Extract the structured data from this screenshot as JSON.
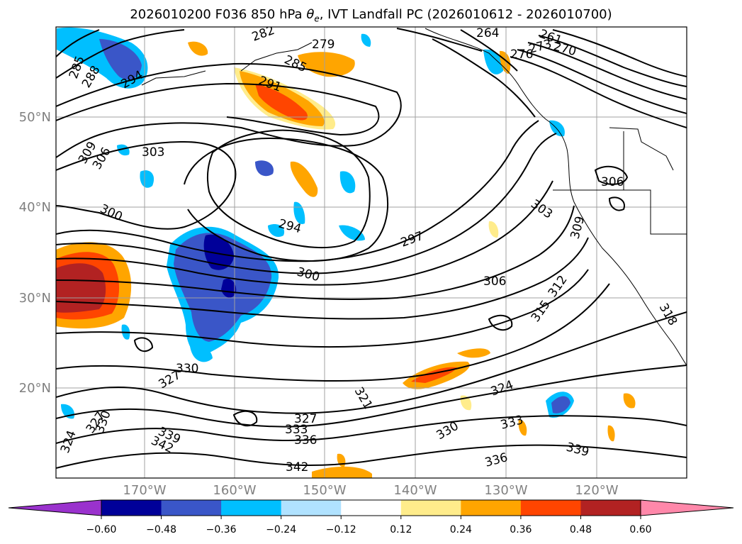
{
  "title": {
    "prefix": "2026010200 F036 850 hPa ",
    "theta_symbol": "θ",
    "theta_subscript": "e",
    "suffix": ", IVT Landfall PC (2026010612 - 2026010700)"
  },
  "axes": {
    "lat_labels": [
      "50°N",
      "40°N",
      "30°N",
      "20°N"
    ],
    "lon_labels": [
      "170°W",
      "160°W",
      "150°W",
      "140°W",
      "130°W",
      "120°W"
    ]
  },
  "contour_labels": [
    "285",
    "288",
    "294",
    "282",
    "285",
    "279",
    "264",
    "261",
    "273",
    "276",
    "270",
    "291",
    "303",
    "309",
    "306",
    "300",
    "294",
    "297",
    "303",
    "306",
    "309",
    "306",
    "312",
    "315",
    "318",
    "300",
    "327",
    "330",
    "330",
    "327",
    "324",
    "321",
    "324",
    "327",
    "333",
    "336",
    "339",
    "342",
    "342",
    "336",
    "330",
    "333",
    "339"
  ],
  "colorbar": {
    "ticks": [
      "−0.60",
      "−0.48",
      "−0.36",
      "−0.24",
      "−0.12",
      "0.12",
      "0.24",
      "0.36",
      "0.48",
      "0.60"
    ],
    "under_color": "#9a32cd",
    "over_color": "#ff88aa",
    "bins": [
      "#000099",
      "#3a56c8",
      "#00bfff",
      "#b0e2ff",
      "#ffffff",
      "#ffec8b",
      "#ffa500",
      "#ff4500",
      "#b22222"
    ]
  }
}
